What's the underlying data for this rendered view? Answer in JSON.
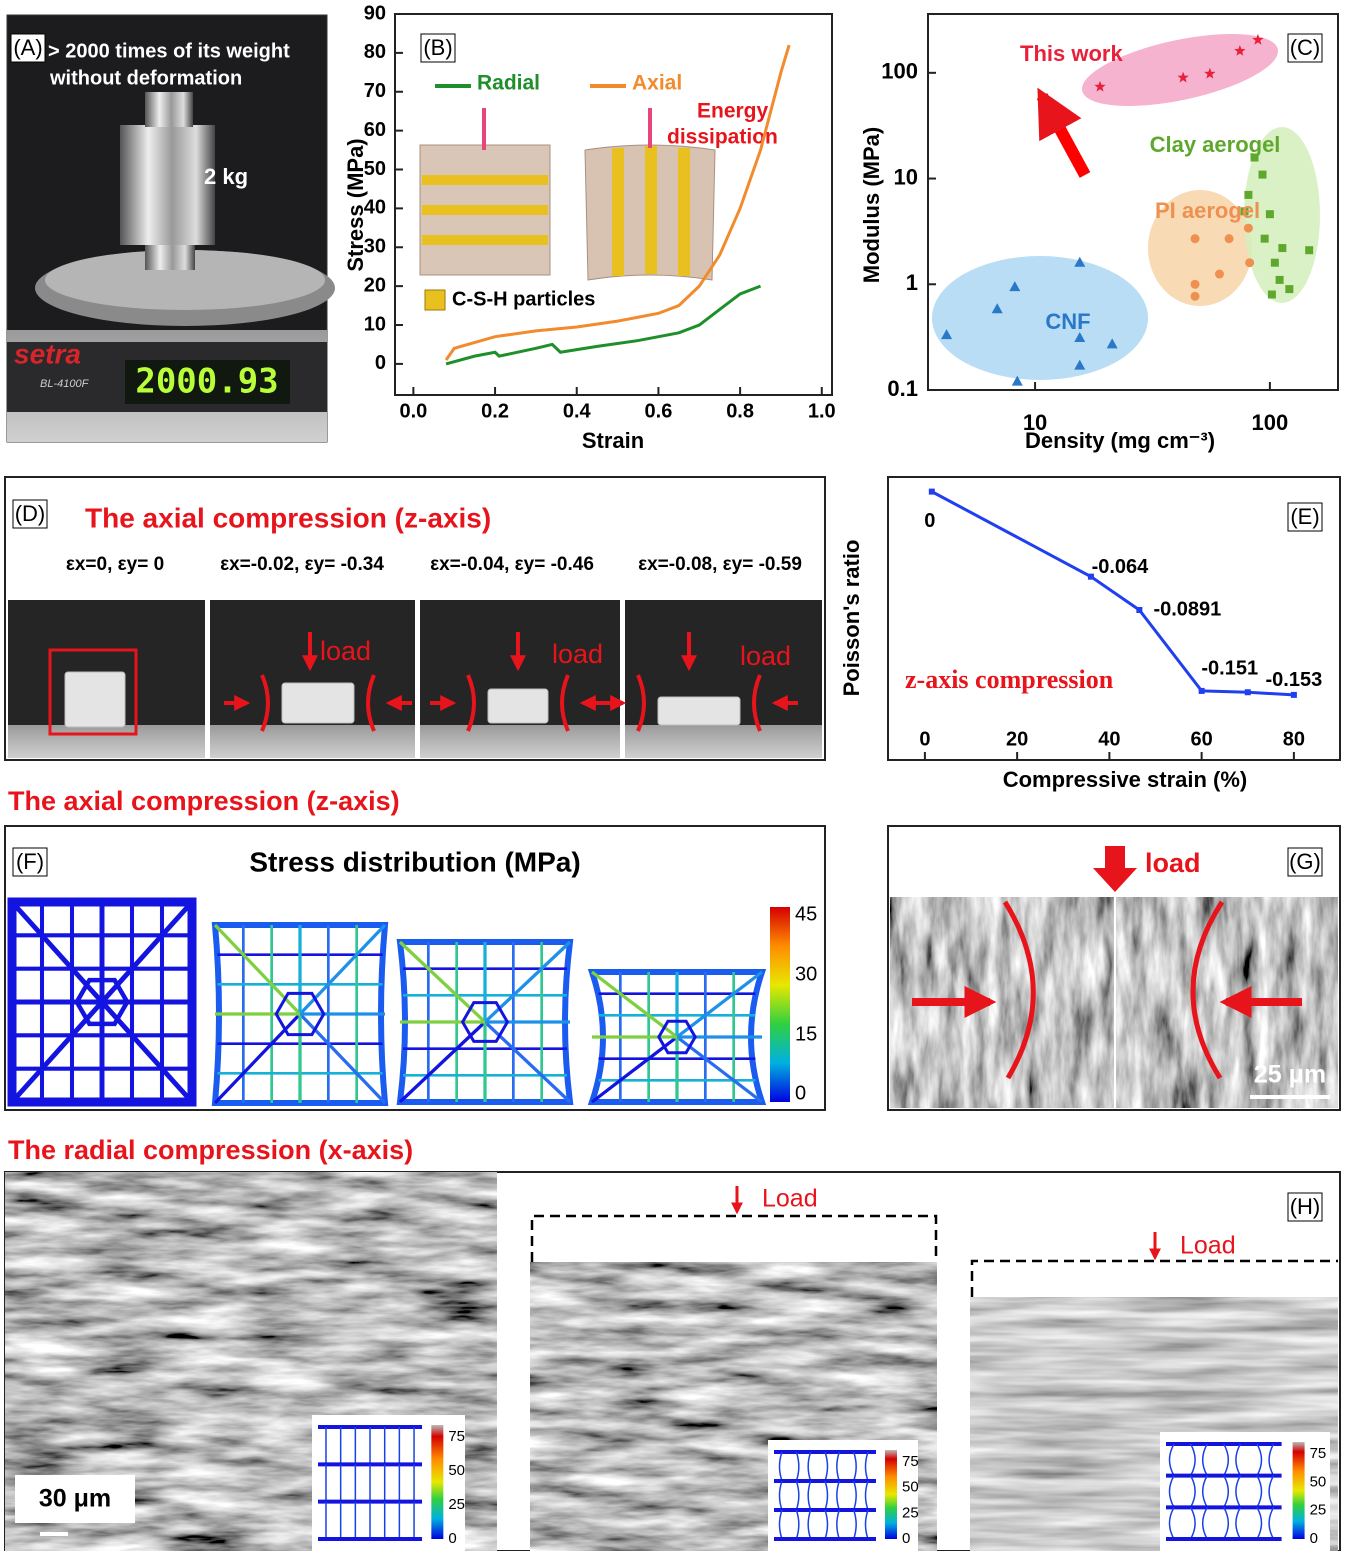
{
  "panels": {
    "A": {
      "label": "(A)",
      "caption": [
        "> 2000 times of its weight",
        "without deformation"
      ],
      "weight": "2 kg",
      "brand": "setra",
      "model": "BL-4100F",
      "display": "2000.93"
    },
    "B": {
      "label": "(B)",
      "energy": [
        "Energy",
        "dissipation"
      ],
      "particles": "C-S-H particles"
    },
    "C": {
      "label": "(C)"
    },
    "D": {
      "label": "(D)",
      "title": "The axial compression (z-axis)",
      "strains": [
        "εx=0,  εy= 0",
        "εx=-0.02, εy= -0.34",
        "εx=-0.04, εy= -0.46",
        "εx=-0.08, εy= -0.59"
      ],
      "load": [
        "load",
        "load",
        "load"
      ]
    },
    "E": {
      "label": "(E)"
    },
    "F": {
      "heading": "The axial compression (z-axis)",
      "label": "(F)",
      "title": "Stress distribution (MPa)",
      "colorbar": [
        45,
        30,
        15,
        0
      ]
    },
    "G": {
      "label": "(G)",
      "load": "load",
      "scale": "25 μm"
    },
    "H": {
      "heading": "The radial compression (x-axis)",
      "label": "(H)",
      "load": [
        "Load",
        "Load"
      ],
      "scale": "30 μm",
      "colorbar": [
        75,
        50,
        25,
        0
      ]
    }
  },
  "chart_data": [
    {
      "type": "line",
      "xlabel": "Strain",
      "ylabel": "Stress (MPa)",
      "xlim": [
        -0.045,
        1.025
      ],
      "ylim": [
        -8,
        90
      ],
      "xticks": [
        {
          "value": 0,
          "label": "0.0"
        },
        0.2,
        0.4,
        0.6,
        0.8,
        {
          "value": 1,
          "label": "1.0"
        }
      ],
      "yticks": [
        0,
        10,
        20,
        30,
        40,
        50,
        60,
        70,
        80,
        90
      ],
      "series": [
        {
          "name": "Radial",
          "color": "#1f8f2a",
          "x": [
            0.08,
            0.15,
            0.2,
            0.21,
            0.3,
            0.34,
            0.36,
            0.45,
            0.55,
            0.65,
            0.7,
            0.75,
            0.8,
            0.85
          ],
          "values": [
            0,
            2,
            3,
            2,
            4,
            5,
            3,
            4.5,
            6,
            8,
            10,
            14,
            18,
            20
          ]
        },
        {
          "name": "Axial",
          "color": "#f28a2e",
          "x": [
            0.08,
            0.1,
            0.2,
            0.3,
            0.4,
            0.5,
            0.6,
            0.65,
            0.7,
            0.75,
            0.8,
            0.85,
            0.9,
            0.92
          ],
          "values": [
            1,
            4,
            7,
            8.5,
            9.5,
            11,
            13,
            15,
            20,
            28,
            40,
            55,
            75,
            82
          ]
        }
      ]
    },
    {
      "type": "scatter",
      "xlabel": "Density (mg cm⁻³)",
      "ylabel": "Modulus (MPa)",
      "log_x": true,
      "log_y": true,
      "xlim": [
        3.5,
        195
      ],
      "ylim": [
        0.1,
        360
      ],
      "xticks": [
        10,
        100
      ],
      "yticks": [
        0.1,
        1,
        10,
        100
      ],
      "series": [
        {
          "name": "This work",
          "color": "#e8213a",
          "marker": "star",
          "x": [
            18.9,
            42.7,
            55.5,
            74.5,
            88.9
          ],
          "values": [
            73.8,
            90,
            98,
            161,
            205
          ]
        },
        {
          "name": "Clay aerogel",
          "color": "#5fa82e",
          "marker": "square",
          "x": [
            86,
            93,
            81,
            100,
            95,
            113,
            147,
            105,
            110,
            121,
            102,
            78
          ],
          "values": [
            15.8,
            10.9,
            7,
            4.6,
            2.7,
            2.2,
            2.1,
            1.6,
            1.1,
            0.9,
            0.8,
            4.9
          ]
        },
        {
          "name": "PI aerogel",
          "color": "#ee9050",
          "marker": "circle",
          "x": [
            48,
            61,
            48,
            81,
            82,
            67,
            48
          ],
          "values": [
            2.7,
            1.25,
            0.77,
            3.4,
            1.6,
            2.7,
            1.0
          ]
        },
        {
          "name": "CNF",
          "color": "#2a78c8",
          "marker": "triangle",
          "x": [
            4.2,
            6.9,
            8.2,
            8.4,
            15.5,
            15.5,
            15.5,
            21.3
          ],
          "values": [
            0.33,
            0.58,
            0.94,
            0.12,
            1.6,
            0.31,
            0.17,
            0.27
          ]
        }
      ]
    },
    {
      "type": "line",
      "xlabel": "Compressive strain (%)",
      "ylabel": "Poisson's ratio",
      "annotation": "z-axis compression",
      "xlim": [
        -8,
        90
      ],
      "ylim": [
        -0.202,
        0.011
      ],
      "xticks": [
        0,
        20,
        40,
        60,
        80
      ],
      "series": [
        {
          "color": "#1f3ff0",
          "x": [
            1.5,
            36,
            46.5,
            60,
            70,
            80
          ],
          "values": [
            0,
            -0.064,
            -0.0891,
            -0.15,
            -0.151,
            -0.153
          ]
        }
      ]
    }
  ]
}
